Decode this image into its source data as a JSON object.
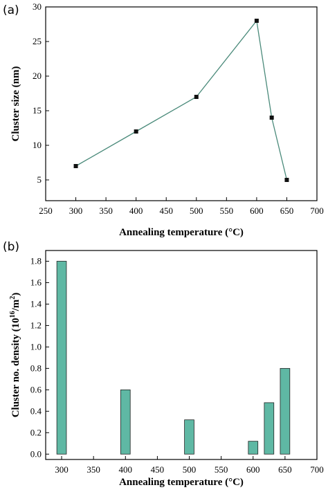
{
  "chart_data": [
    {
      "panel_label": "(a)",
      "type": "line",
      "x": [
        300,
        400,
        500,
        600,
        625,
        650
      ],
      "y": [
        7,
        12,
        17,
        28,
        14,
        5
      ],
      "xlabel": "Annealing temperature (°C)",
      "ylabel": "Cluster size (nm)",
      "xlim": [
        250,
        700
      ],
      "ylim": [
        2,
        30
      ],
      "xticks": [
        250,
        300,
        350,
        400,
        450,
        500,
        550,
        600,
        650,
        700
      ],
      "yticks": [
        5,
        10,
        15,
        20,
        25,
        30
      ],
      "color": "#4a8a7a",
      "marker": "square"
    },
    {
      "panel_label": "(b)",
      "type": "bar",
      "x": [
        300,
        400,
        500,
        600,
        625,
        650
      ],
      "values": [
        1.8,
        0.6,
        0.32,
        0.12,
        0.48,
        0.8
      ],
      "xlabel": "Annealing temperature (°C)",
      "ylabel": "Cluster no. density (10^16/m^2)",
      "xlim": [
        275,
        700
      ],
      "ylim": [
        -0.05,
        1.9
      ],
      "xticks": [
        300,
        350,
        400,
        450,
        500,
        550,
        600,
        650,
        700
      ],
      "yticks": [
        "0.0",
        "0.2",
        "0.4",
        "0.6",
        "0.8",
        "1.0",
        "1.2",
        "1.4",
        "1.6",
        "1.8"
      ],
      "bar_width": 15,
      "bar_color": "#5fb8a4"
    }
  ]
}
